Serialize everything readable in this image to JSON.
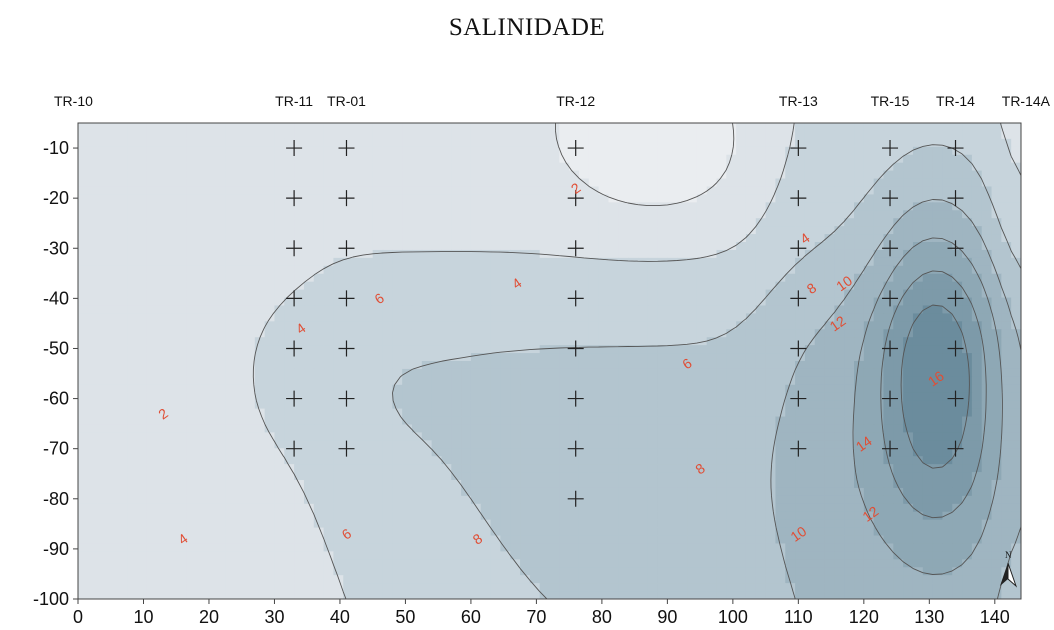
{
  "chart_data": {
    "type": "contour",
    "title": "SALINIDADE",
    "xlim": [
      0,
      144
    ],
    "ylim": [
      -100,
      -5
    ],
    "x_ticks": [
      0,
      10,
      20,
      30,
      40,
      50,
      60,
      70,
      80,
      90,
      100,
      110,
      120,
      130,
      140
    ],
    "y_ticks": [
      -10,
      -20,
      -30,
      -40,
      -50,
      -60,
      -70,
      -80,
      -90,
      -100
    ],
    "grid": false,
    "transects": [
      {
        "name": "TR-10",
        "x": 0
      },
      {
        "name": "TR-11",
        "x": 33
      },
      {
        "name": "TR-01",
        "x": 41
      },
      {
        "name": "TR-12",
        "x": 76
      },
      {
        "name": "TR-13",
        "x": 110
      },
      {
        "name": "TR-15",
        "x": 124
      },
      {
        "name": "TR-14",
        "x": 134
      },
      {
        "name": "TR-14A",
        "x": 144
      }
    ],
    "sample_points": [
      {
        "x": 33,
        "depths": [
          -10,
          -20,
          -30,
          -40,
          -50,
          -60,
          -70
        ]
      },
      {
        "x": 41,
        "depths": [
          -10,
          -20,
          -30,
          -40,
          -50,
          -60,
          -70
        ]
      },
      {
        "x": 76,
        "depths": [
          -10,
          -20,
          -30,
          -40,
          -50,
          -60,
          -70,
          -80
        ]
      },
      {
        "x": 110,
        "depths": [
          -10,
          -20,
          -30,
          -40,
          -50,
          -60,
          -70
        ]
      },
      {
        "x": 124,
        "depths": [
          -10,
          -20,
          -30,
          -40,
          -50,
          -60,
          -70
        ]
      },
      {
        "x": 134,
        "depths": [
          -10,
          -20,
          -30,
          -40,
          -50,
          -60,
          -70
        ]
      }
    ],
    "contour_levels": [
      2,
      4,
      6,
      8,
      10,
      12,
      14,
      16
    ],
    "contour_labels": [
      {
        "text": "2",
        "x": 76,
        "y": -18
      },
      {
        "text": "2",
        "x": 13,
        "y": -63
      },
      {
        "text": "4",
        "x": 67,
        "y": -37
      },
      {
        "text": "4",
        "x": 111,
        "y": -28
      },
      {
        "text": "4",
        "x": 34,
        "y": -46
      },
      {
        "text": "4",
        "x": 16,
        "y": -88
      },
      {
        "text": "6",
        "x": 46,
        "y": -40
      },
      {
        "text": "6",
        "x": 93,
        "y": -53
      },
      {
        "text": "6",
        "x": 41,
        "y": -87
      },
      {
        "text": "8",
        "x": 112,
        "y": -38
      },
      {
        "text": "8",
        "x": 95,
        "y": -74
      },
      {
        "text": "8",
        "x": 61,
        "y": -88
      },
      {
        "text": "10",
        "x": 117,
        "y": -37
      },
      {
        "text": "10",
        "x": 110,
        "y": -87
      },
      {
        "text": "12",
        "x": 116,
        "y": -45
      },
      {
        "text": "12",
        "x": 121,
        "y": -83
      },
      {
        "text": "14",
        "x": 120,
        "y": -69
      },
      {
        "text": "16",
        "x": 131,
        "y": -56
      }
    ],
    "colors": {
      "level_0": "#eaedf0",
      "level_2": "#dde3e8",
      "level_4": "#c7d4dc",
      "level_6": "#b3c5cf",
      "level_8": "#9fb5c1",
      "level_10": "#8ea8b5",
      "level_12": "#7d9aa9",
      "level_14": "#6b8c9d",
      "level_16": "#5e8193",
      "contour_line": "#555555",
      "label": "#e04e35",
      "sample_marker": "#222222"
    },
    "north_arrow": "N"
  }
}
